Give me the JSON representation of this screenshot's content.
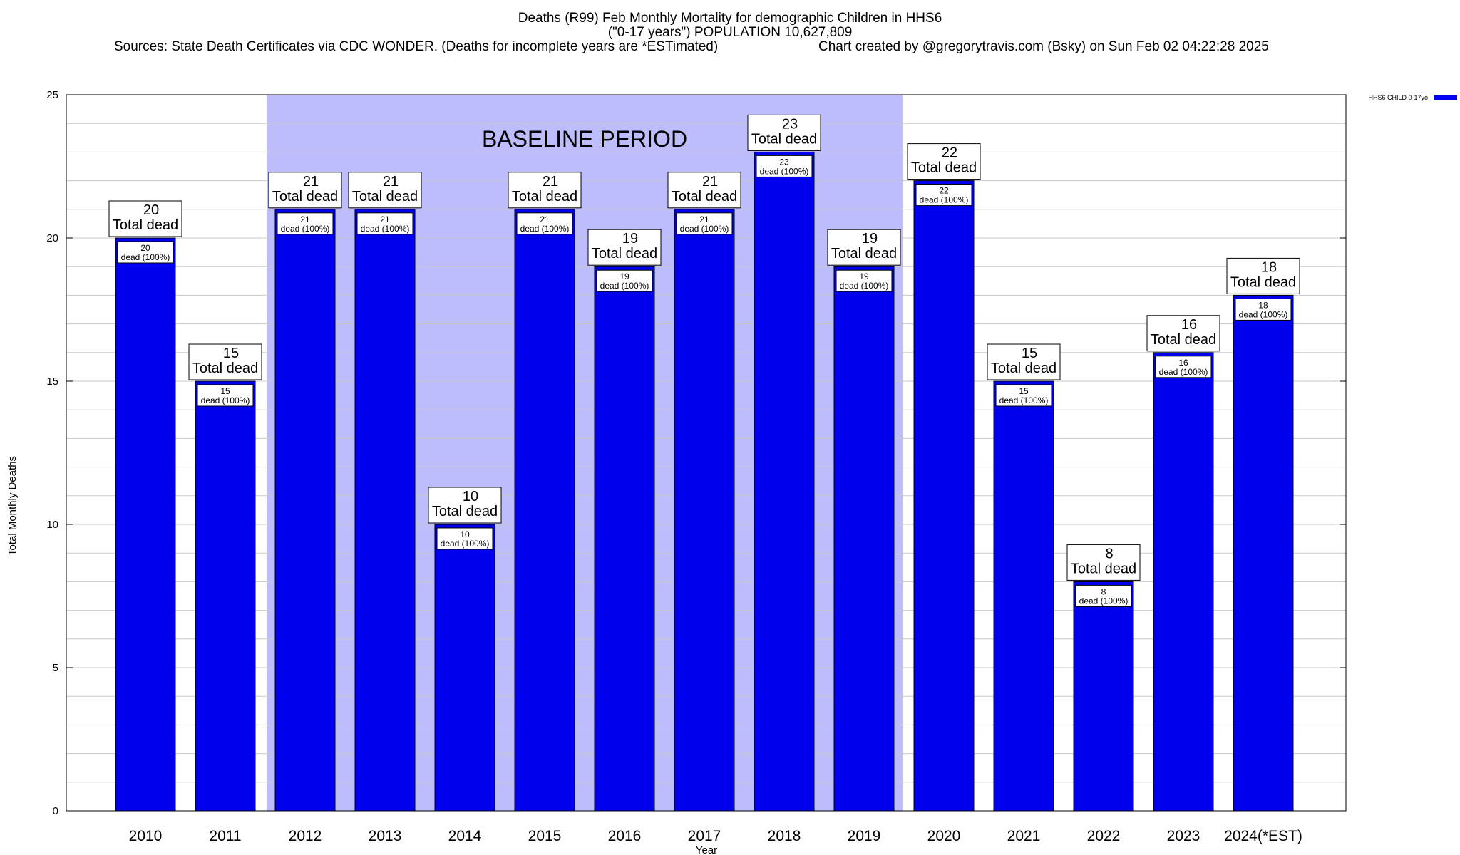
{
  "chart_data": {
    "type": "bar",
    "title_lines": [
      "Deaths (R99) Feb Monthly Mortality for demographic Children in HHS6",
      "(\"0-17 years\") POPULATION 10,627,809"
    ],
    "sources_text": "Sources: State Death Certificates via CDC WONDER. (Deaths for incomplete years are *ESTimated)",
    "credit_text": "Chart created by @gregorytravis.com (Bsky) on Sun Feb 02 04:22:28 2025",
    "xlabel": "Year",
    "ylabel": "Total Monthly Deaths",
    "ylim": [
      0,
      25
    ],
    "yticks": [
      0,
      5,
      10,
      15,
      20,
      25
    ],
    "grid": true,
    "categories": [
      "2010",
      "2011",
      "2012",
      "2013",
      "2014",
      "2015",
      "2016",
      "2017",
      "2018",
      "2019",
      "2020",
      "2021",
      "2022",
      "2023",
      "2024(*EST)"
    ],
    "series": [
      {
        "name": "HHS6 CHILD 0-17yo",
        "color": "#0000ee",
        "values": [
          20,
          15,
          21,
          21,
          10,
          21,
          19,
          21,
          23,
          19,
          22,
          15,
          8,
          16,
          18
        ]
      }
    ],
    "total_label_suffix": "Total dead",
    "inner_label_suffix": "dead (100%)",
    "baseline_period": {
      "label": "BASELINE PERIOD",
      "start": "2012",
      "end": "2019",
      "color": "#bdbdfb"
    },
    "legend": {
      "position": "top-right",
      "label": "HHS6 CHILD 0-17yo"
    }
  }
}
